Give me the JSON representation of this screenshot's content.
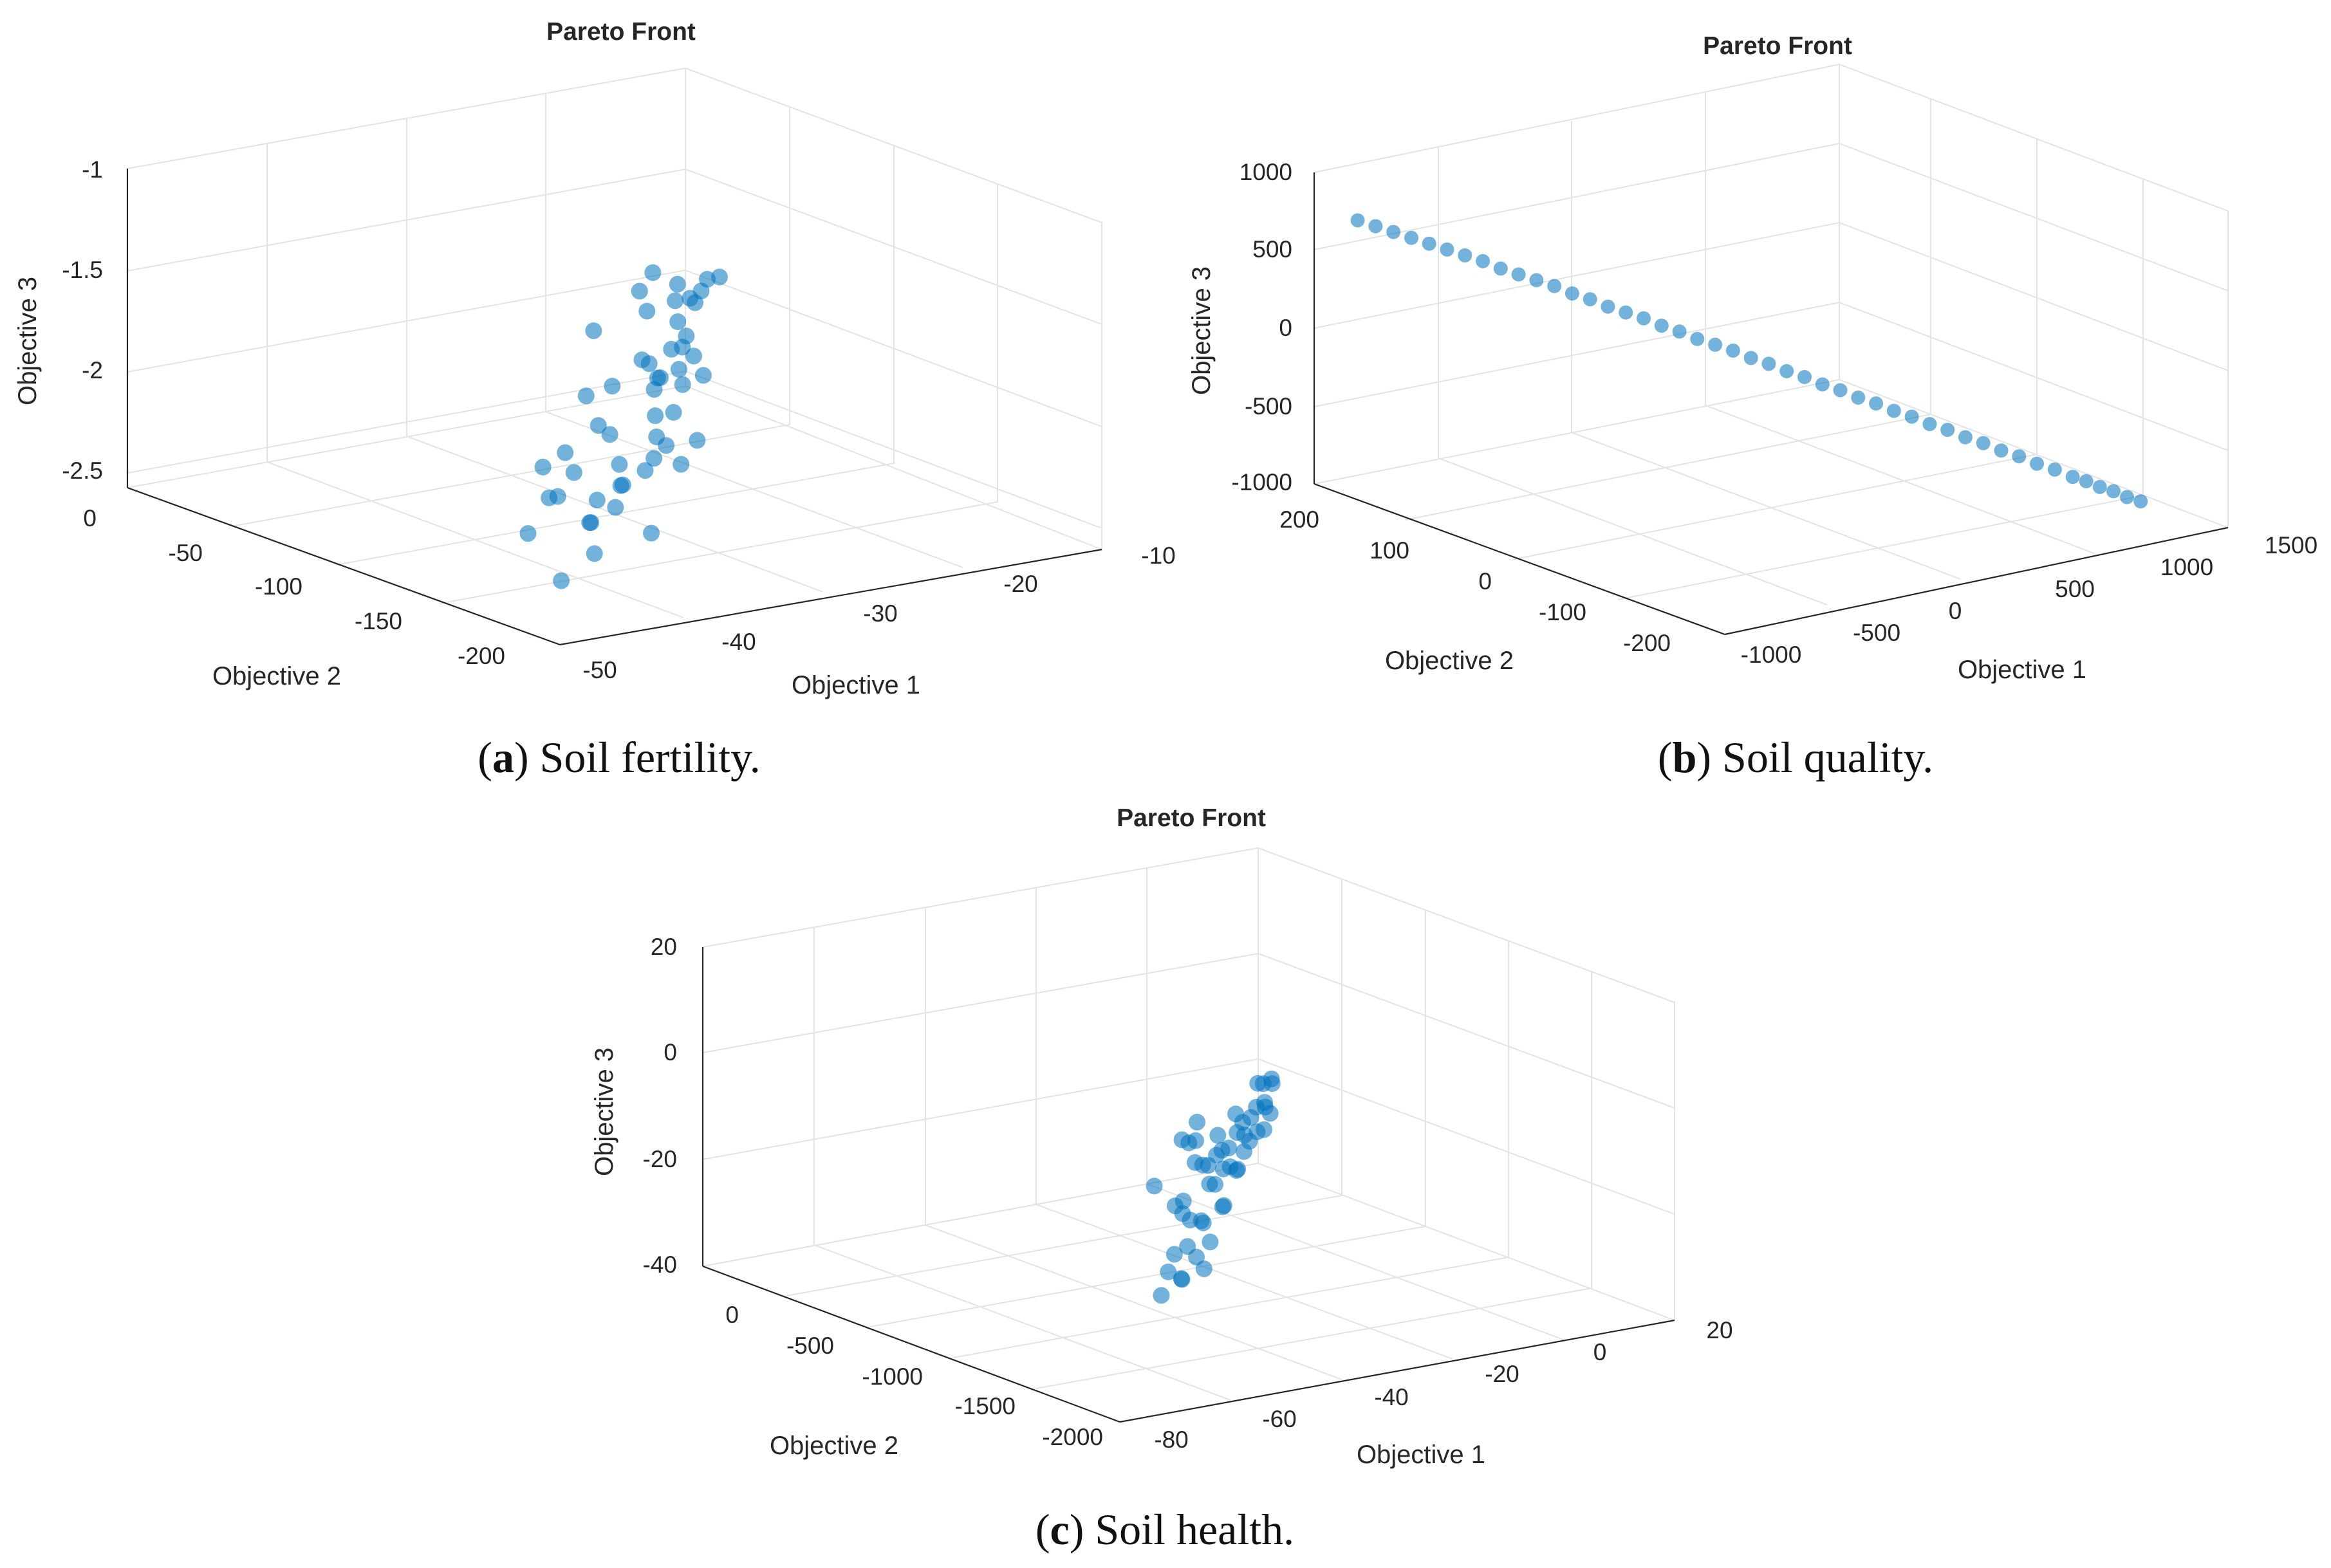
{
  "colors": {
    "marker": "#0072BD",
    "marker_alpha": 0.55,
    "grid": "#e3e3e3",
    "axis": "#262626"
  },
  "chart_data": [
    {
      "id": "a",
      "type": "scatter",
      "title": "Pareto Front",
      "xlabel": "Objective 1",
      "ylabel": "Objective 2",
      "zlabel": "Objective 3",
      "xticks": [
        "-50",
        "-40",
        "-30",
        "-20",
        "-10"
      ],
      "yticks": [
        "0",
        "-50",
        "-100",
        "-150",
        "-200"
      ],
      "zticks": [
        "-1",
        "-1.5",
        "-2",
        "-2.5"
      ],
      "xlim": [
        -50,
        -10
      ],
      "ylim": [
        -220,
        0
      ],
      "zlim": [
        -2.5,
        -1
      ],
      "caption_label": "a",
      "caption_text": "Soil fertility.",
      "points": [
        [
          -33,
          -120,
          -1.55
        ],
        [
          -25,
          -95,
          -1.45
        ],
        [
          -21,
          -80,
          -1.6
        ],
        [
          -15,
          -60,
          -1.7
        ],
        [
          -13,
          -40,
          -1.8
        ],
        [
          -45,
          -180,
          -2.0
        ],
        [
          -40,
          -170,
          -2.1
        ],
        [
          -35,
          -160,
          -2.05
        ],
        [
          -30,
          -140,
          -1.9
        ],
        [
          -28,
          -130,
          -2.2
        ],
        [
          -22,
          -100,
          -1.95
        ],
        [
          -18,
          -60,
          -2.1
        ],
        [
          -16,
          -50,
          -2.0
        ],
        [
          -12,
          -30,
          -1.9
        ],
        [
          -47,
          -200,
          -2.3
        ],
        [
          -42,
          -180,
          -2.15
        ],
        [
          -37,
          -150,
          -1.85
        ],
        [
          -31,
          -120,
          -2.3
        ],
        [
          -27,
          -110,
          -2.05
        ],
        [
          -24,
          -90,
          -2.25
        ],
        [
          -20,
          -70,
          -1.95
        ],
        [
          -14,
          -40,
          -2.15
        ],
        [
          -43,
          -200,
          -2.0
        ],
        [
          -39,
          -160,
          -2.25
        ],
        [
          -34,
          -140,
          -2.1
        ],
        [
          -29,
          -125,
          -1.8
        ],
        [
          -26,
          -100,
          -1.85
        ],
        [
          -23,
          -85,
          -2.0
        ],
        [
          -19,
          -65,
          -1.75
        ],
        [
          -17,
          -55,
          -2.2
        ],
        [
          -46,
          -210,
          -2.15
        ],
        [
          -41,
          -190,
          -1.95
        ],
        [
          -36,
          -170,
          -2.3
        ],
        [
          -32,
          -150,
          -2.0
        ],
        [
          -30,
          -130,
          -2.15
        ],
        [
          -25,
          -110,
          -1.75
        ],
        [
          -21,
          -90,
          -2.3
        ],
        [
          -15,
          -45,
          -1.85
        ],
        [
          -13,
          -25,
          -2.05
        ],
        [
          -44,
          -170,
          -1.9
        ],
        [
          -38,
          -140,
          -2.0
        ],
        [
          -33,
          -110,
          -2.25
        ],
        [
          -28,
          -95,
          -1.95
        ],
        [
          -22,
          -75,
          -2.1
        ],
        [
          -18,
          -40,
          -1.8
        ],
        [
          -11,
          -20,
          -2.0
        ],
        [
          -48,
          -190,
          -2.1
        ],
        [
          -40,
          -150,
          -2.15
        ],
        [
          -35,
          -130,
          -1.8
        ],
        [
          -26,
          -80,
          -2.25
        ],
        [
          -20,
          -55,
          -2.05
        ],
        [
          -16,
          -30,
          -1.95
        ]
      ]
    },
    {
      "id": "b",
      "type": "scatter",
      "title": "Pareto Front",
      "xlabel": "Objective 1",
      "ylabel": "Objective 2",
      "zlabel": "Objective 3",
      "xticks": [
        "-1000",
        "-500",
        "0",
        "500",
        "1000",
        "1500"
      ],
      "yticks": [
        "200",
        "100",
        "0",
        "-100",
        "-200"
      ],
      "zticks": [
        "1000",
        "500",
        "0",
        "-500",
        "-1000"
      ],
      "xlim": [
        -1100,
        1600
      ],
      "ylim": [
        -240,
        240
      ],
      "zlim": [
        -1000,
        1000
      ],
      "caption_label": "b",
      "caption_text": "Soil quality.",
      "points": [
        [
          -1050,
          200,
          760
        ],
        [
          -1000,
          190,
          730
        ],
        [
          -950,
          180,
          700
        ],
        [
          -900,
          170,
          670
        ],
        [
          -850,
          160,
          640
        ],
        [
          -800,
          150,
          610
        ],
        [
          -750,
          140,
          580
        ],
        [
          -700,
          130,
          550
        ],
        [
          -650,
          120,
          510
        ],
        [
          -600,
          110,
          480
        ],
        [
          -550,
          100,
          450
        ],
        [
          -500,
          90,
          420
        ],
        [
          -450,
          80,
          380
        ],
        [
          -400,
          70,
          350
        ],
        [
          -350,
          60,
          310
        ],
        [
          -300,
          50,
          280
        ],
        [
          -250,
          40,
          250
        ],
        [
          -200,
          30,
          210
        ],
        [
          -150,
          20,
          180
        ],
        [
          -100,
          10,
          140
        ],
        [
          -50,
          0,
          110
        ],
        [
          0,
          -10,
          80
        ],
        [
          50,
          -20,
          40
        ],
        [
          100,
          -30,
          10
        ],
        [
          150,
          -40,
          -30
        ],
        [
          200,
          -50,
          -60
        ],
        [
          250,
          -60,
          -100
        ],
        [
          300,
          -70,
          -130
        ],
        [
          350,
          -80,
          -170
        ],
        [
          400,
          -90,
          -200
        ],
        [
          450,
          -100,
          -240
        ],
        [
          500,
          -110,
          -270
        ],
        [
          550,
          -120,
          -310
        ],
        [
          600,
          -130,
          -340
        ],
        [
          650,
          -140,
          -380
        ],
        [
          700,
          -150,
          -410
        ],
        [
          750,
          -160,
          -450
        ],
        [
          800,
          -170,
          -480
        ],
        [
          850,
          -180,
          -520
        ],
        [
          900,
          -190,
          -550
        ],
        [
          950,
          -200,
          -590
        ],
        [
          1000,
          -205,
          -620
        ],
        [
          1050,
          -210,
          -660
        ],
        [
          1100,
          -215,
          -690
        ],
        [
          1150,
          -220,
          -730
        ],
        [
          1200,
          -225,
          -760
        ]
      ]
    },
    {
      "id": "c",
      "type": "scatter",
      "title": "Pareto Front",
      "xlabel": "Objective 1",
      "ylabel": "Objective 2",
      "zlabel": "Objective 3",
      "xticks": [
        "-80",
        "-60",
        "-40",
        "-20",
        "0",
        "20"
      ],
      "yticks": [
        "0",
        "-500",
        "-1000",
        "-1500",
        "-2000"
      ],
      "zticks": [
        "20",
        "0",
        "-20",
        "-40"
      ],
      "xlim": [
        -80,
        20
      ],
      "ylim": [
        -2000,
        0
      ],
      "zlim": [
        -40,
        20
      ],
      "caption_label": "c",
      "caption_text": "Soil health.",
      "points": [
        [
          -50,
          -1500,
          0
        ],
        [
          -45,
          -1400,
          -3
        ],
        [
          -40,
          -1300,
          -5
        ],
        [
          -55,
          -1600,
          -10
        ],
        [
          -48,
          -1450,
          -15
        ],
        [
          -42,
          -1350,
          -8
        ],
        [
          -35,
          -1200,
          -12
        ],
        [
          -30,
          -1100,
          -18
        ],
        [
          -25,
          -1000,
          -15
        ],
        [
          -20,
          -900,
          -20
        ],
        [
          -15,
          -800,
          -22
        ],
        [
          -10,
          -700,
          -18
        ],
        [
          -5,
          -600,
          -24
        ],
        [
          0,
          -500,
          -20
        ],
        [
          5,
          -400,
          -16
        ],
        [
          10,
          -300,
          -22
        ],
        [
          15,
          -200,
          -20
        ],
        [
          -60,
          -1700,
          -20
        ],
        [
          -52,
          -1550,
          -25
        ],
        [
          -46,
          -1420,
          -22
        ],
        [
          -38,
          -1250,
          -28
        ],
        [
          -33,
          -1150,
          -24
        ],
        [
          -28,
          -1050,
          -30
        ],
        [
          -22,
          -950,
          -26
        ],
        [
          -18,
          -850,
          -28
        ],
        [
          -12,
          -750,
          -24
        ],
        [
          -8,
          -650,
          -26
        ],
        [
          -3,
          -550,
          -22
        ],
        [
          3,
          -450,
          -24
        ],
        [
          8,
          -350,
          -26
        ],
        [
          12,
          -250,
          -24
        ],
        [
          17,
          -150,
          -22
        ],
        [
          -65,
          -1800,
          -22
        ],
        [
          -57,
          -1650,
          -18
        ],
        [
          -49,
          -1480,
          -12
        ],
        [
          -44,
          -1380,
          -18
        ],
        [
          -36,
          -1220,
          -22
        ],
        [
          -31,
          -1120,
          -14
        ],
        [
          -26,
          -1020,
          -20
        ],
        [
          -21,
          -920,
          -16
        ],
        [
          -16,
          -820,
          -18
        ],
        [
          -11,
          -720,
          -14
        ],
        [
          -6,
          -620,
          -18
        ],
        [
          -1,
          -520,
          -24
        ],
        [
          4,
          -420,
          -20
        ],
        [
          9,
          -320,
          -18
        ],
        [
          14,
          -220,
          -26
        ],
        [
          -58,
          -1580,
          -6
        ],
        [
          -47,
          -1420,
          -28
        ],
        [
          -39,
          -1280,
          -2
        ],
        [
          -34,
          -1180,
          -32
        ],
        [
          -27,
          -1060,
          -10
        ]
      ]
    }
  ]
}
